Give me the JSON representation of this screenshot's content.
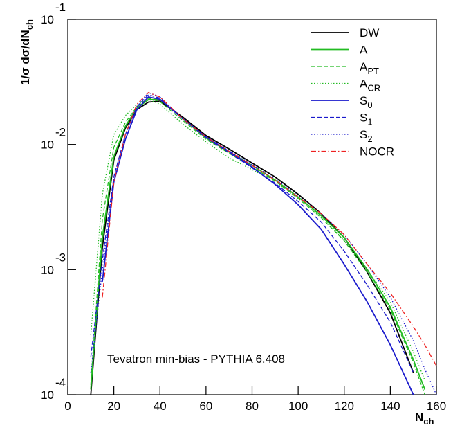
{
  "chart_data": {
    "type": "line",
    "annotation": "Tevatron min-bias - PYTHIA 6.408",
    "xlabel": "N",
    "xlabel_sub": "ch",
    "ylabel": "1/σ dσ/dN",
    "ylabel_sub": "ch",
    "yscale": "log",
    "xlim": [
      0,
      160
    ],
    "ylim": [
      0.0001,
      0.1
    ],
    "xticks": [
      0,
      20,
      40,
      60,
      80,
      100,
      120,
      140,
      160
    ],
    "yticks": [
      {
        "value": 0.0001,
        "label": "10",
        "exponent": "-4"
      },
      {
        "value": 0.001,
        "label": "10",
        "exponent": "-3"
      },
      {
        "value": 0.01,
        "label": "10",
        "exponent": "-2"
      },
      {
        "value": 0.1,
        "label": "10",
        "exponent": "-1"
      }
    ],
    "legend": "upper right",
    "x": [
      10,
      15,
      20,
      25,
      30,
      35,
      40,
      50,
      60,
      70,
      80,
      90,
      100,
      110,
      120,
      130,
      140,
      150,
      155,
      160
    ],
    "series": [
      {
        "name": "DW",
        "color": "#000000",
        "style": "solid",
        "values": [
          0.0001,
          0.0015,
          0.0075,
          0.0135,
          0.019,
          0.0218,
          0.0222,
          0.0165,
          0.0118,
          0.0092,
          0.0071,
          0.0055,
          0.004,
          0.0028,
          0.0018,
          0.00095,
          0.00045,
          0.00015,
          null,
          null
        ]
      },
      {
        "name": "A",
        "color": "#22bb22",
        "style": "solid",
        "values": [
          0.00011,
          0.0018,
          0.008,
          0.014,
          0.0195,
          0.0228,
          0.023,
          0.016,
          0.0113,
          0.0087,
          0.0068,
          0.0052,
          0.0038,
          0.0027,
          0.0018,
          0.001,
          0.0005,
          0.00019,
          0.00011,
          null
        ]
      },
      {
        "name": "A",
        "name_sub": "PT",
        "color": "#22bb22",
        "style": "dashed",
        "values": [
          0.00012,
          0.0025,
          0.0095,
          0.015,
          0.02,
          0.0235,
          0.022,
          0.0155,
          0.011,
          0.0085,
          0.0066,
          0.0051,
          0.0037,
          0.0026,
          0.0017,
          0.00095,
          0.00048,
          0.00018,
          0.0001,
          null
        ]
      },
      {
        "name": "A",
        "name_sub": "CR",
        "color": "#22bb22",
        "style": "dotted",
        "values": [
          0.0003,
          0.004,
          0.012,
          0.017,
          0.021,
          0.023,
          0.021,
          0.0145,
          0.0105,
          0.0078,
          0.0063,
          0.005,
          0.0037,
          0.0027,
          0.0017,
          0.001,
          0.00055,
          0.00022,
          0.00013,
          null
        ]
      },
      {
        "name": "S",
        "name_sub": "0",
        "color": "#1a1acc",
        "style": "solid",
        "values": [
          null,
          0.0008,
          0.005,
          0.011,
          0.019,
          0.024,
          0.023,
          0.016,
          0.0115,
          0.0088,
          0.0066,
          0.0048,
          0.0033,
          0.0021,
          0.0011,
          0.00055,
          0.00025,
          0.0001,
          null,
          null
        ]
      },
      {
        "name": "S",
        "name_sub": "1",
        "color": "#1a1acc",
        "style": "dashed",
        "values": [
          0.0002,
          0.0012,
          0.0055,
          0.012,
          0.02,
          0.025,
          0.0235,
          0.016,
          0.0113,
          0.0086,
          0.0065,
          0.0049,
          0.0035,
          0.0024,
          0.0014,
          0.00075,
          0.00038,
          0.00015,
          null,
          null
        ]
      },
      {
        "name": "S",
        "name_sub": "2",
        "color": "#1a1acc",
        "style": "dotted",
        "values": [
          0.00015,
          0.001,
          0.0055,
          0.012,
          0.02,
          0.026,
          0.024,
          0.016,
          0.0115,
          0.0089,
          0.0069,
          0.0053,
          0.0039,
          0.0028,
          0.0019,
          0.0011,
          0.0006,
          0.00027,
          0.00016,
          0.0001
        ]
      },
      {
        "name": "NOCR",
        "color": "#ee2222",
        "style": "dashdot",
        "values": [
          null,
          0.0006,
          0.005,
          0.012,
          0.021,
          0.026,
          0.024,
          0.016,
          0.0115,
          0.0088,
          0.0068,
          0.0052,
          0.0038,
          0.0028,
          0.0019,
          0.0011,
          0.00065,
          0.00035,
          0.00025,
          0.00017
        ]
      }
    ]
  }
}
